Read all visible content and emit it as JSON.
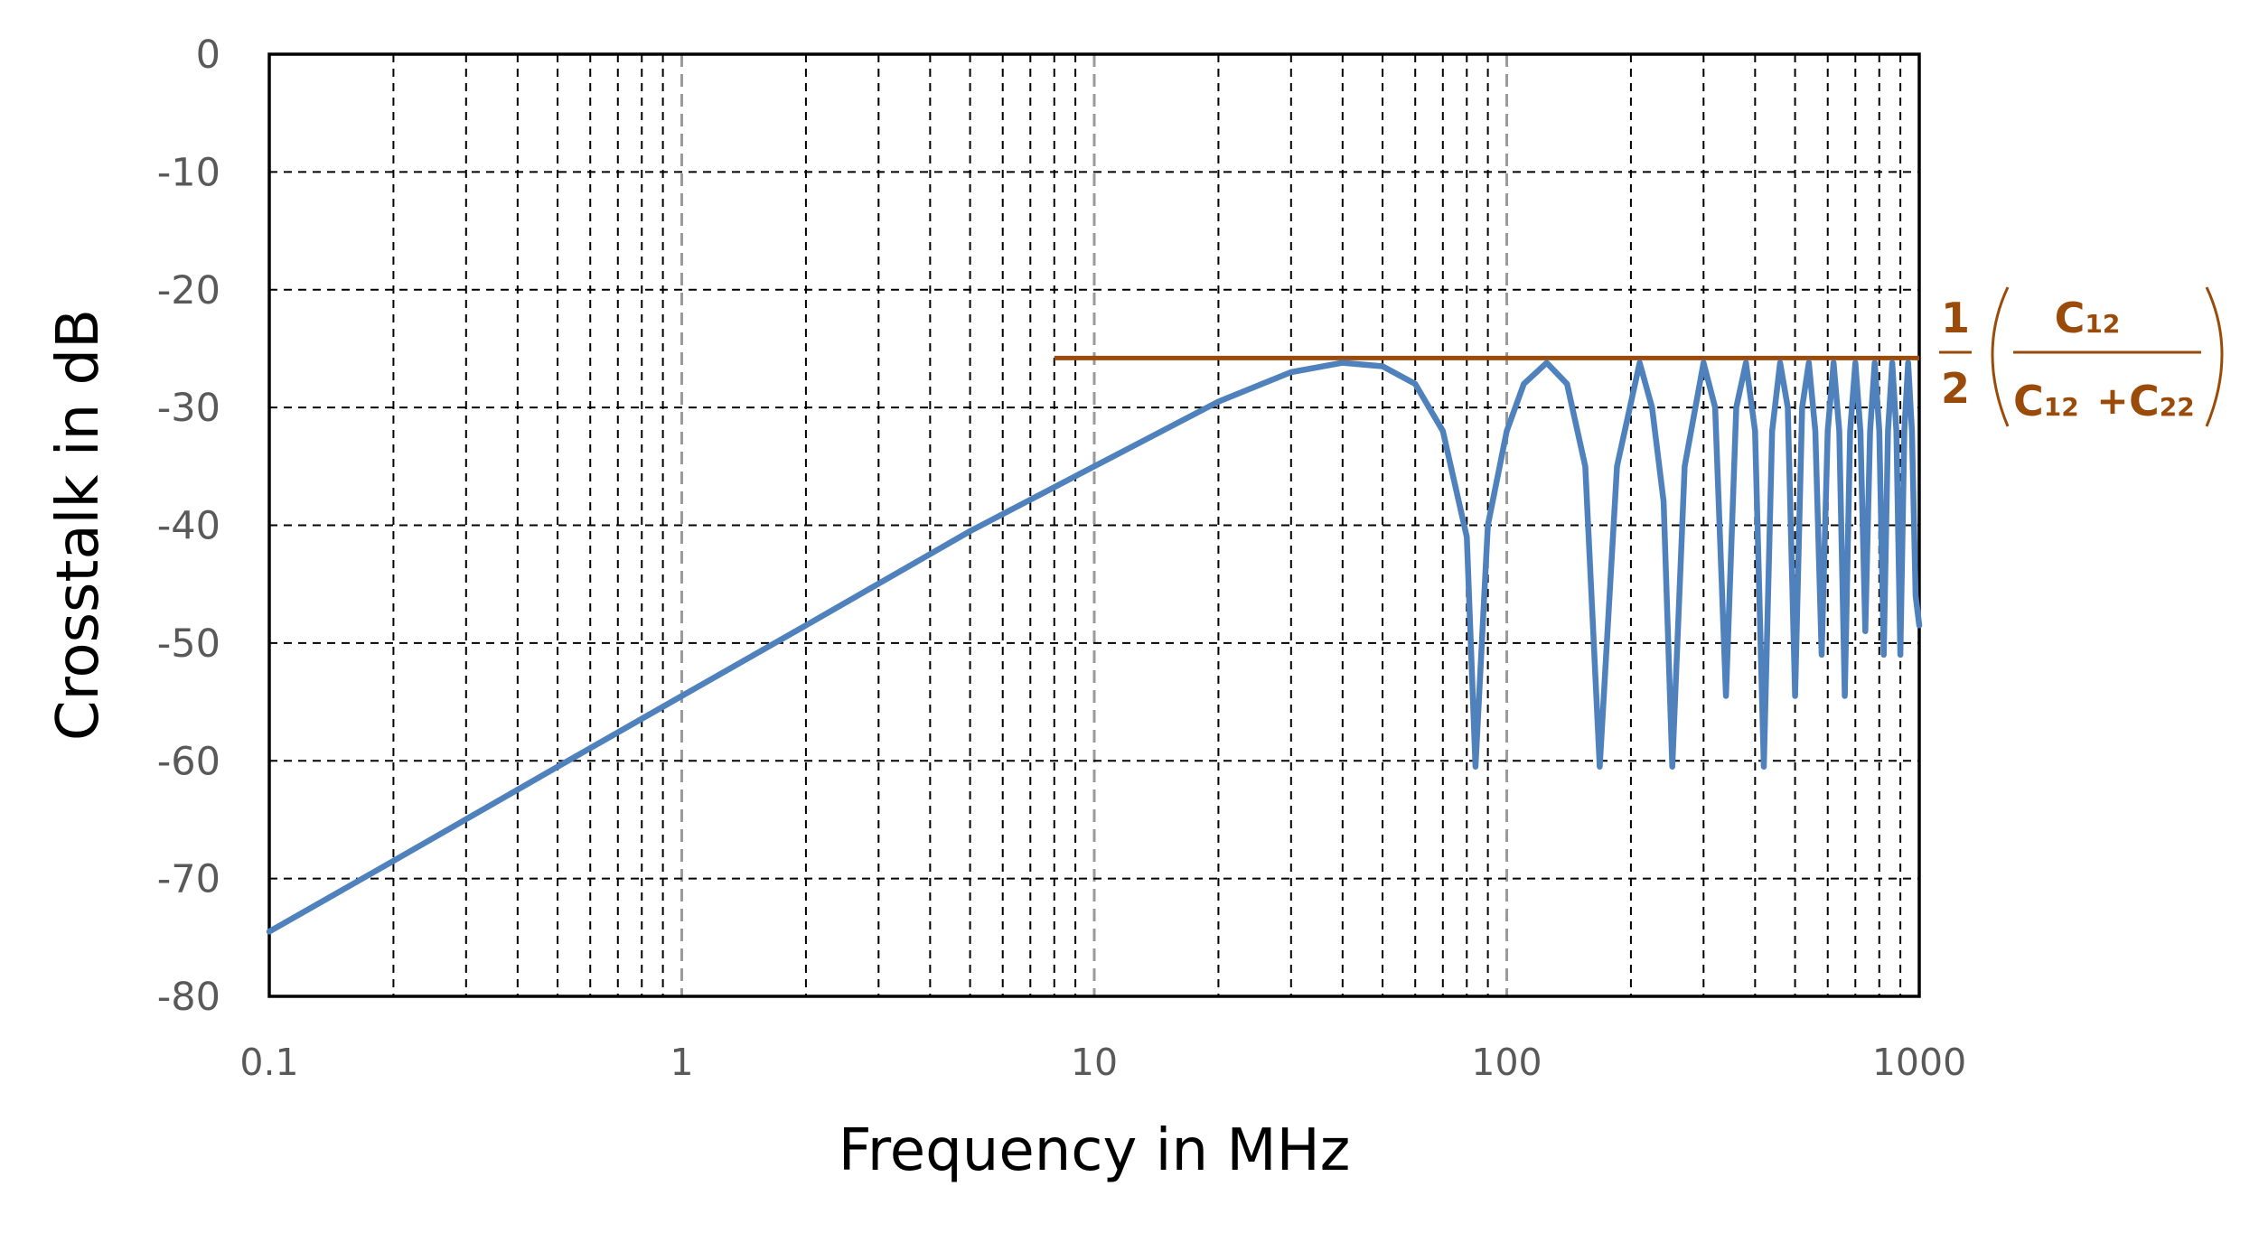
{
  "chart_data": {
    "type": "line",
    "title": "",
    "xlabel": "Frequency in MHz",
    "ylabel": "Crosstalk in dB",
    "x_scale": "log",
    "xlim": [
      0.1,
      1000
    ],
    "ylim": [
      -80,
      0
    ],
    "x_ticks": [
      "0.1",
      "1",
      "10",
      "100",
      "1000"
    ],
    "y_ticks": [
      "0",
      "-10",
      "-20",
      "-30",
      "-40",
      "-50",
      "-60",
      "-70",
      "-80"
    ],
    "grid": true,
    "colors": {
      "crosstalk": "#4f81bd",
      "limit": "#9a4b0a",
      "grid": "#000000",
      "decade_grid": "#9a9a9a"
    },
    "series": [
      {
        "x": [
          0.1,
          0.2,
          0.5,
          1,
          2,
          5,
          10,
          20,
          30,
          40,
          50,
          60,
          70,
          80,
          84,
          90,
          100,
          110,
          125,
          140,
          155,
          168,
          185,
          210,
          225,
          240,
          252,
          270,
          300,
          320,
          340,
          360,
          380,
          400,
          420,
          440,
          460,
          480,
          500,
          520,
          540,
          560,
          580,
          600,
          620,
          640,
          660,
          680,
          700,
          720,
          740,
          760,
          780,
          800,
          820,
          840,
          860,
          880,
          900,
          920,
          940,
          960,
          980,
          1000
        ],
        "y": [
          -74.5,
          -68.5,
          -60.5,
          -54.5,
          -48.5,
          -40.5,
          -35,
          -29.5,
          -27,
          -26.2,
          -26.5,
          -28,
          -32,
          -41,
          -60.5,
          -40,
          -32,
          -28,
          -26.2,
          -28,
          -35,
          -60.5,
          -35,
          -26.2,
          -30,
          -38,
          -60.5,
          -35,
          -26.2,
          -30,
          -54.5,
          -30,
          -26.2,
          -32,
          -60.5,
          -32,
          -26.2,
          -30,
          -54.5,
          -30,
          -26.2,
          -32,
          -51,
          -32,
          -26.2,
          -32,
          -54.5,
          -32,
          -26.2,
          -32,
          -49,
          -32,
          -26.2,
          -32,
          -51,
          -32,
          -26.2,
          -32,
          -51,
          -32,
          -26.2,
          -32,
          -46,
          -48.5
        ]
      },
      {
        "x": [
          8,
          1000
        ],
        "y": [
          -25.8,
          -25.8
        ]
      }
    ],
    "annotations": [
      {
        "text": "1/2 ( C12 / (C12 + C22) )",
        "target": "limit"
      }
    ]
  },
  "formula": {
    "one": "1",
    "two": "2",
    "c": "C",
    "sub12": "12",
    "sub22": "22",
    "plus": "+"
  }
}
